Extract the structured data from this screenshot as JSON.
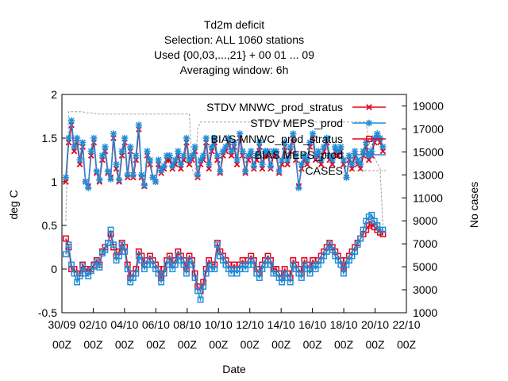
{
  "chart_data": {
    "type": "line",
    "title_lines": [
      "Td2m deficit",
      "Selection: ALL    1060 stations",
      "Used {00,03,...,21} + 00 01 ... 09",
      "Averaging window:  6h"
    ],
    "xlabel": "Date",
    "ylabel": "deg C",
    "y2label": "No cases",
    "x_ticks": [
      {
        "date": "30/09",
        "hour": "00Z"
      },
      {
        "date": "02/10",
        "hour": "00Z"
      },
      {
        "date": "04/10",
        "hour": "00Z"
      },
      {
        "date": "06/10",
        "hour": "00Z"
      },
      {
        "date": "08/10",
        "hour": "00Z"
      },
      {
        "date": "10/10",
        "hour": "00Z"
      },
      {
        "date": "12/10",
        "hour": "00Z"
      },
      {
        "date": "14/10",
        "hour": "00Z"
      },
      {
        "date": "16/10",
        "hour": "00Z"
      },
      {
        "date": "18/10",
        "hour": "00Z"
      },
      {
        "date": "20/10",
        "hour": "00Z"
      },
      {
        "date": "22/10",
        "hour": "00Z"
      }
    ],
    "y_ticks": [
      "-0.5",
      "0",
      "0.5",
      "1",
      "1.5",
      "2"
    ],
    "y2_ticks": [
      "1000",
      "3000",
      "5000",
      "7000",
      "9000",
      "11000",
      "13000",
      "15000",
      "17000",
      "19000"
    ],
    "xlim_days": [
      0,
      22
    ],
    "ylim": [
      -0.5,
      2
    ],
    "y2lim": [
      1000,
      20000
    ],
    "legend_position": "top-right",
    "series": [
      {
        "name": "STDV MNWC_prod_stratus",
        "color": "#e8001c",
        "marker": "cross",
        "axis": "left",
        "values": [
          1.0,
          1.45,
          1.65,
          1.35,
          1.45,
          1.2,
          1.4,
          1.0,
          0.95,
          1.3,
          1.45,
          1.1,
          1.0,
          1.25,
          1.35,
          1.1,
          1.05,
          1.5,
          1.15,
          1.0,
          1.3,
          1.45,
          1.05,
          1.35,
          1.05,
          1.25,
          1.6,
          1.05,
          0.95,
          1.3,
          1.2,
          1.05,
          1.0,
          1.2,
          1.1,
          1.15,
          1.25,
          1.25,
          1.15,
          1.2,
          1.3,
          1.15,
          1.25,
          1.45,
          1.2,
          1.25,
          1.35,
          1.05,
          1.2,
          1.25,
          1.45,
          1.15,
          1.35,
          1.45,
          1.25,
          1.1,
          1.3,
          1.35,
          1.45,
          1.3,
          1.4,
          1.2,
          1.5,
          1.3,
          1.1,
          1.25,
          1.3,
          1.15,
          1.25,
          1.4,
          1.15,
          1.3,
          1.3,
          1.15,
          1.3,
          1.3,
          1.1,
          1.2,
          1.4,
          1.2,
          1.35,
          1.5,
          1.25,
          0.95,
          1.15,
          1.25,
          1.2,
          1.4,
          1.5,
          1.25,
          1.3,
          1.2,
          1.35,
          1.45,
          1.25,
          1.2,
          1.35,
          1.3,
          1.35,
          1.2,
          1.05,
          1.25,
          1.15,
          1.3,
          1.2,
          1.15,
          1.3,
          1.4,
          1.25,
          1.3,
          1.45,
          1.5,
          1.45,
          1.35
        ]
      },
      {
        "name": "STDV MEPS_prod",
        "color": "#1f8ed8",
        "marker": "star",
        "axis": "left",
        "values": [
          1.05,
          1.5,
          1.7,
          1.4,
          1.5,
          1.25,
          1.45,
          1.0,
          0.93,
          1.35,
          1.5,
          1.12,
          1.02,
          1.3,
          1.4,
          1.12,
          1.03,
          1.55,
          1.2,
          1.02,
          1.35,
          1.5,
          1.08,
          1.4,
          1.08,
          1.3,
          1.65,
          1.08,
          0.96,
          1.35,
          1.25,
          1.05,
          1.0,
          1.25,
          1.13,
          1.18,
          1.3,
          1.3,
          1.18,
          1.25,
          1.35,
          1.2,
          1.3,
          1.5,
          1.25,
          1.3,
          1.4,
          1.08,
          1.25,
          1.3,
          1.5,
          1.2,
          1.4,
          1.5,
          1.3,
          1.12,
          1.35,
          1.4,
          1.5,
          1.35,
          1.45,
          1.25,
          1.55,
          1.35,
          1.12,
          1.3,
          1.35,
          1.18,
          1.3,
          1.45,
          1.2,
          1.35,
          1.35,
          1.18,
          1.35,
          1.35,
          1.12,
          1.25,
          1.45,
          1.25,
          1.4,
          1.55,
          1.3,
          0.93,
          1.2,
          1.3,
          1.25,
          1.45,
          1.55,
          1.3,
          1.35,
          1.25,
          1.4,
          1.5,
          1.3,
          1.25,
          1.4,
          1.35,
          1.4,
          1.25,
          1.05,
          1.3,
          1.2,
          1.35,
          1.25,
          1.2,
          1.35,
          1.45,
          1.3,
          1.35,
          1.5,
          1.55,
          1.5,
          1.4
        ]
      },
      {
        "name": "BIAS MNWC_prod_stratus",
        "color": "#e8001c",
        "marker": "square",
        "axis": "left",
        "values": [
          0.35,
          0.25,
          0.0,
          0.0,
          -0.05,
          -0.05,
          0.05,
          0.0,
          -0.03,
          0.0,
          0.05,
          0.1,
          0.05,
          0.2,
          0.25,
          0.3,
          0.4,
          0.25,
          0.15,
          0.2,
          0.3,
          0.25,
          0.05,
          -0.1,
          -0.05,
          0.0,
          0.2,
          0.15,
          0.05,
          0.1,
          0.15,
          0.1,
          0.05,
          0.0,
          -0.1,
          0.0,
          0.1,
          0.15,
          0.05,
          0.1,
          0.2,
          0.15,
          0.1,
          0.0,
          0.15,
          0.1,
          -0.05,
          -0.2,
          -0.25,
          -0.15,
          0.0,
          0.1,
          0.05,
          0.05,
          0.3,
          0.2,
          0.15,
          0.1,
          0.05,
          0.0,
          0.05,
          0.0,
          0.05,
          0.1,
          0.05,
          0.1,
          0.15,
          0.1,
          0.0,
          -0.05,
          0.05,
          0.1,
          0.15,
          0.1,
          0.0,
          0.0,
          -0.05,
          -0.1,
          0.0,
          -0.05,
          -0.1,
          0.1,
          0.05,
          0.0,
          -0.05,
          0.1,
          0.05,
          0.0,
          0.1,
          0.05,
          0.1,
          0.15,
          0.2,
          0.25,
          0.3,
          0.25,
          0.2,
          0.15,
          0.1,
          0.0,
          0.1,
          0.15,
          0.2,
          0.25,
          0.3,
          0.35,
          0.4,
          0.45,
          0.5,
          0.52,
          0.48,
          0.45,
          0.42,
          0.4
        ]
      },
      {
        "name": "BIAS MEPS_prod",
        "color": "#1f8ed8",
        "marker": "square",
        "axis": "left",
        "values": [
          0.17,
          0.28,
          0.05,
          -0.05,
          -0.15,
          -0.08,
          0.03,
          -0.05,
          -0.08,
          -0.02,
          0.03,
          0.08,
          0.02,
          0.18,
          0.22,
          0.3,
          0.45,
          0.28,
          0.1,
          0.15,
          0.28,
          0.2,
          0.0,
          -0.15,
          -0.1,
          -0.05,
          0.15,
          0.1,
          0.0,
          0.05,
          0.1,
          0.05,
          0.0,
          -0.05,
          -0.15,
          -0.05,
          0.05,
          0.1,
          0.0,
          0.05,
          0.15,
          0.1,
          0.05,
          -0.05,
          0.1,
          0.05,
          -0.1,
          -0.25,
          -0.35,
          -0.2,
          -0.05,
          0.05,
          0.0,
          0.0,
          0.28,
          0.15,
          0.1,
          0.05,
          0.0,
          -0.05,
          0.0,
          -0.05,
          0.0,
          0.05,
          0.0,
          0.05,
          0.1,
          0.05,
          -0.05,
          -0.1,
          0.0,
          0.05,
          0.1,
          0.05,
          -0.05,
          -0.05,
          -0.1,
          -0.15,
          -0.05,
          -0.1,
          -0.15,
          0.05,
          0.0,
          -0.05,
          -0.1,
          0.05,
          0.0,
          -0.05,
          0.05,
          0.0,
          0.05,
          0.1,
          0.15,
          0.2,
          0.28,
          0.22,
          0.15,
          0.1,
          0.05,
          -0.05,
          0.05,
          0.1,
          0.15,
          0.2,
          0.28,
          0.35,
          0.45,
          0.55,
          0.6,
          0.62,
          0.55,
          0.5,
          0.45,
          0.45
        ]
      },
      {
        "name": "CASES",
        "color": "#a0a0a0",
        "marker": "none",
        "dash": true,
        "axis": "right",
        "values": [
          9000,
          18500,
          18500,
          18500,
          18500,
          18500,
          18500,
          18400,
          18400,
          18400,
          18400,
          18300,
          18300,
          18300,
          18300,
          18300,
          18300,
          18300,
          18300,
          18300,
          18300,
          18300,
          18300,
          18300,
          18300,
          18300,
          18300,
          18300,
          18300,
          18300,
          18300,
          18300,
          18300,
          18300,
          18300,
          18300,
          18300,
          18300,
          18300,
          18300,
          18300,
          18300,
          18300,
          18300,
          18300,
          13500,
          12800,
          17000,
          17600,
          17600,
          17600,
          17600,
          17600,
          17600,
          17600,
          17600,
          17600,
          17600,
          17600,
          17600,
          17600,
          17600,
          17600,
          17600,
          17600,
          17600,
          17600,
          17600,
          17600,
          17600,
          17600,
          17600,
          17600,
          17600,
          17600,
          17600,
          17600,
          17600,
          17600,
          17600,
          17600,
          17600,
          17600,
          17600,
          17600,
          17600,
          17600,
          17600,
          17600,
          17600,
          17600,
          17600,
          17600,
          17600,
          17600,
          17600,
          17600,
          17600,
          17600,
          17600,
          17600,
          17600,
          17600,
          17600,
          17600,
          17600,
          17600,
          17600,
          16000,
          15000,
          14500,
          14000,
          13500,
          8500
        ]
      }
    ]
  }
}
